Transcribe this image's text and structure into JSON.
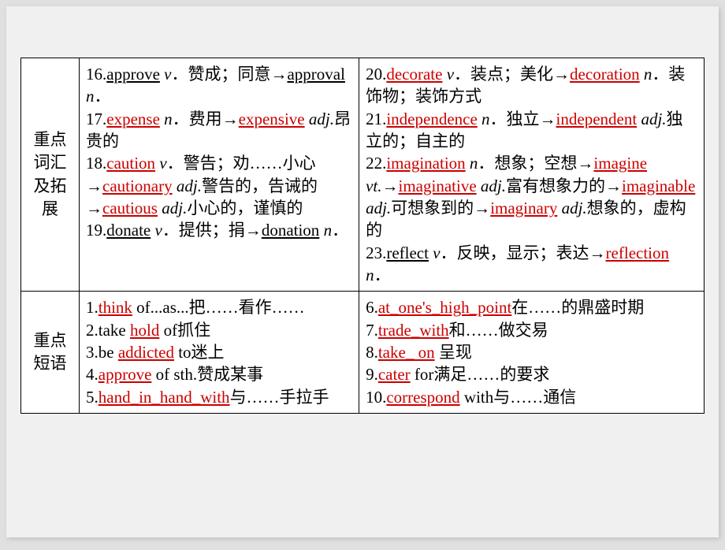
{
  "table": {
    "border_color": "#000000",
    "background": "#ffffff",
    "font_size": 21,
    "highlight_color": "#cc0000",
    "rows": [
      {
        "label": [
          "重点",
          "词汇",
          "及拓",
          "展"
        ],
        "left": {
          "items": [
            {
              "n": "16.",
              "segs": [
                {
                  "t": "approve",
                  "s": "bk"
                },
                {
                  "t": " "
                },
                {
                  "t": "v",
                  "s": "pos"
                },
                {
                  "t": "．赞成；同意→"
                },
                {
                  "t": "approval",
                  "s": "bk"
                },
                {
                  "t": " "
                },
                {
                  "t": "n",
                  "s": "pos"
                },
                {
                  "t": "．"
                }
              ]
            },
            {
              "n": "17.",
              "segs": [
                {
                  "t": "expense",
                  "s": "hl"
                },
                {
                  "t": " "
                },
                {
                  "t": "n",
                  "s": "pos"
                },
                {
                  "t": "．费用→"
                },
                {
                  "t": "expensive",
                  "s": "hl"
                },
                {
                  "t": " "
                },
                {
                  "t": "adj.",
                  "s": "pos"
                },
                {
                  "t": "昂贵的"
                }
              ]
            },
            {
              "n": "18.",
              "segs": [
                {
                  "t": "caution",
                  "s": "hl"
                },
                {
                  "t": " "
                },
                {
                  "t": "v",
                  "s": "pos"
                },
                {
                  "t": "．警告；劝……小心→"
                },
                {
                  "t": "cautionary",
                  "s": "hl"
                },
                {
                  "t": " "
                },
                {
                  "t": "adj.",
                  "s": "pos"
                },
                {
                  "t": "警告的，告诫的→"
                },
                {
                  "t": "cautious",
                  "s": "hl"
                },
                {
                  "t": " "
                },
                {
                  "t": "adj.",
                  "s": "pos"
                },
                {
                  "t": "小心的，谨慎的"
                }
              ]
            },
            {
              "n": "19.",
              "segs": [
                {
                  "t": "donate",
                  "s": "bk"
                },
                {
                  "t": " "
                },
                {
                  "t": "v",
                  "s": "pos"
                },
                {
                  "t": "．提供；捐→"
                },
                {
                  "t": "donation",
                  "s": "bk"
                },
                {
                  "t": " "
                },
                {
                  "t": "n",
                  "s": "pos"
                },
                {
                  "t": "．"
                }
              ]
            }
          ]
        },
        "right": {
          "items": [
            {
              "n": "20.",
              "segs": [
                {
                  "t": "decorate",
                  "s": "hl"
                },
                {
                  "t": " "
                },
                {
                  "t": "v",
                  "s": "pos"
                },
                {
                  "t": "．装点；美化→"
                },
                {
                  "t": "decoration",
                  "s": "hl"
                },
                {
                  "t": " "
                },
                {
                  "t": "n",
                  "s": "pos"
                },
                {
                  "t": "．装饰物；装饰方式"
                }
              ]
            },
            {
              "n": "21.",
              "segs": [
                {
                  "t": "independence",
                  "s": "hl"
                },
                {
                  "t": " "
                },
                {
                  "t": "n",
                  "s": "pos"
                },
                {
                  "t": "．独立→"
                },
                {
                  "t": "independent",
                  "s": "hl"
                },
                {
                  "t": " "
                },
                {
                  "t": "adj.",
                  "s": "pos"
                },
                {
                  "t": "独立的；自主的"
                }
              ]
            },
            {
              "n": "22.",
              "segs": [
                {
                  "t": "imagination",
                  "s": "hl"
                },
                {
                  "t": " "
                },
                {
                  "t": "n",
                  "s": "pos"
                },
                {
                  "t": "．想象；空想→"
                },
                {
                  "t": "imagine",
                  "s": "hl"
                },
                {
                  "t": " "
                },
                {
                  "t": "vt.",
                  "s": "pos"
                },
                {
                  "t": "→"
                },
                {
                  "t": "imaginative",
                  "s": "hl"
                },
                {
                  "t": " "
                },
                {
                  "t": "adj.",
                  "s": "pos"
                },
                {
                  "t": "富有想象力的→"
                },
                {
                  "t": "imaginable",
                  "s": "hl"
                },
                {
                  "t": " "
                },
                {
                  "t": "adj.",
                  "s": "pos"
                },
                {
                  "t": "可想象到的→"
                },
                {
                  "t": "imaginary",
                  "s": "hl"
                },
                {
                  "t": " "
                },
                {
                  "t": "adj.",
                  "s": "pos"
                },
                {
                  "t": "想象的，虚构的"
                }
              ]
            },
            {
              "n": "23.",
              "segs": [
                {
                  "t": "reflect",
                  "s": "bk"
                },
                {
                  "t": " "
                },
                {
                  "t": "v",
                  "s": "pos"
                },
                {
                  "t": "．反映，显示；表达→"
                },
                {
                  "t": "reflection",
                  "s": "hl"
                },
                {
                  "t": " "
                },
                {
                  "t": "n",
                  "s": "pos"
                },
                {
                  "t": "．"
                }
              ]
            }
          ]
        }
      },
      {
        "label": [
          "重点",
          "短语"
        ],
        "left": {
          "items": [
            {
              "n": "1.",
              "segs": [
                {
                  "t": "think",
                  "s": "hl"
                },
                {
                  "t": " of...as...把……看作……"
                }
              ]
            },
            {
              "n": "2.",
              "segs": [
                {
                  "t": "take "
                },
                {
                  "t": "hold",
                  "s": "hl"
                },
                {
                  "t": " of抓住"
                }
              ]
            },
            {
              "n": "3.",
              "segs": [
                {
                  "t": "be "
                },
                {
                  "t": "addicted",
                  "s": "hl"
                },
                {
                  "t": " to迷上"
                }
              ]
            },
            {
              "n": "4.",
              "segs": [
                {
                  "t": "approve",
                  "s": "hl"
                },
                {
                  "t": " of sth.赞成某事"
                }
              ]
            },
            {
              "n": "5.",
              "segs": [
                {
                  "t": "hand_in_hand_with",
                  "s": "hl"
                },
                {
                  "t": "与……手拉手"
                }
              ]
            }
          ]
        },
        "right": {
          "items": [
            {
              "n": "6.",
              "segs": [
                {
                  "t": "at_one's_high_point",
                  "s": "hl"
                },
                {
                  "t": "在……的鼎盛时期"
                }
              ]
            },
            {
              "n": "7.",
              "segs": [
                {
                  "t": "trade_with",
                  "s": "hl"
                },
                {
                  "t": "和……做交易"
                }
              ]
            },
            {
              "n": "8.",
              "segs": [
                {
                  "t": "take_ on",
                  "s": "hl"
                },
                {
                  "t": " 呈现"
                }
              ]
            },
            {
              "n": "9.",
              "segs": [
                {
                  "t": "cater",
                  "s": "hl"
                },
                {
                  "t": " for满足……的要求"
                }
              ]
            },
            {
              "n": "10.",
              "segs": [
                {
                  "t": "correspond",
                  "s": "hl"
                },
                {
                  "t": " with与……通信"
                }
              ]
            }
          ]
        }
      }
    ]
  }
}
